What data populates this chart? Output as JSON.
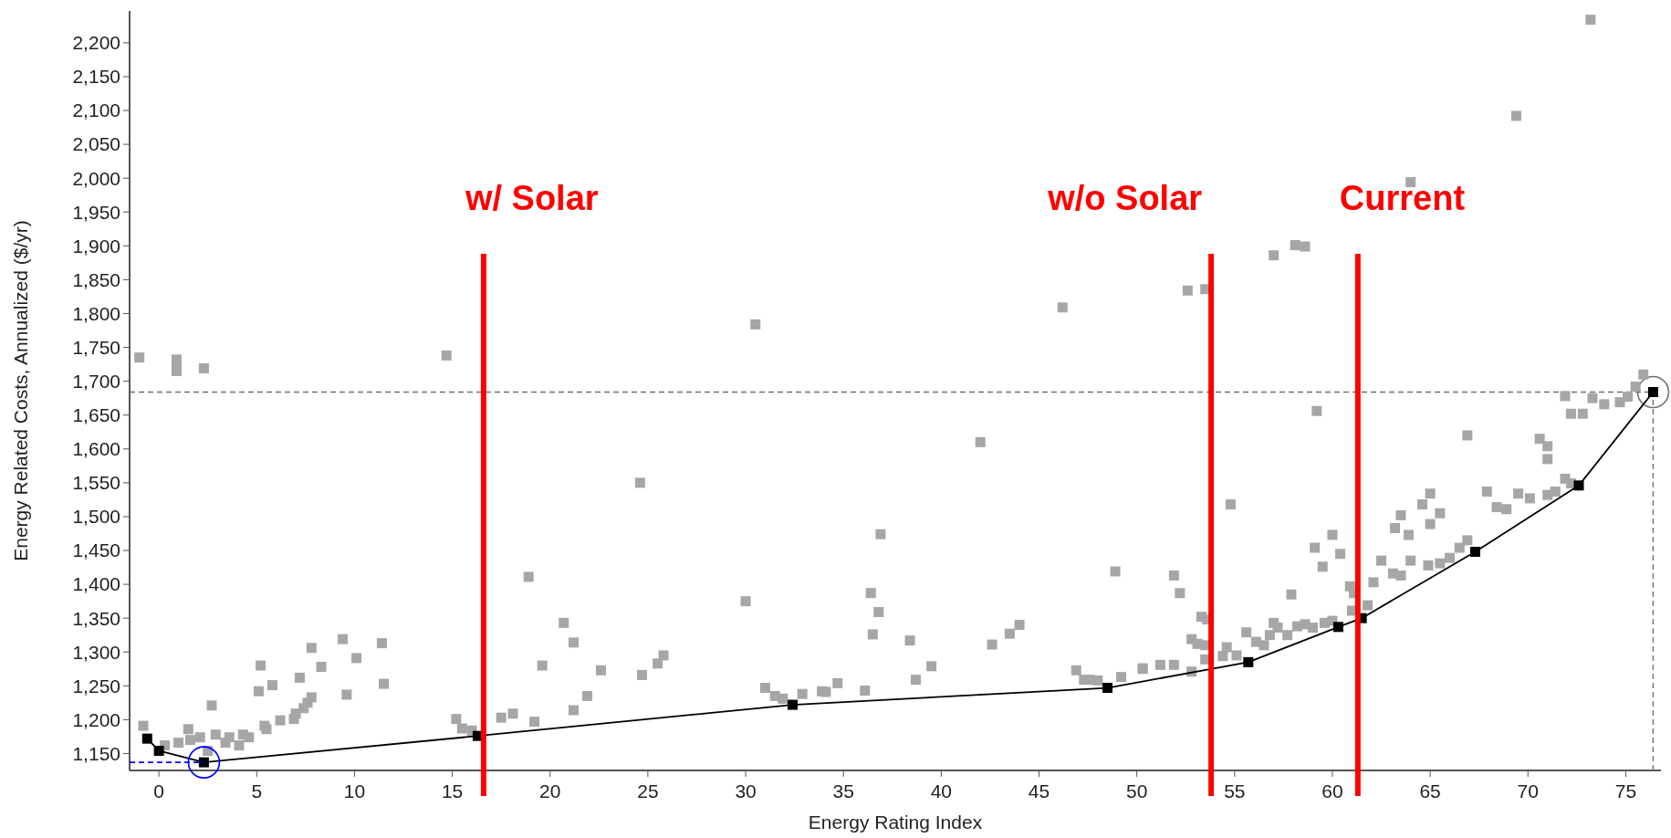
{
  "chart_data": {
    "type": "scatter",
    "xlabel": "Energy Rating Index",
    "ylabel": "Energy Related Costs, Annualized ($/yr)",
    "xlim": [
      -1.5,
      76.8
    ],
    "ylim": [
      1125,
      2247
    ],
    "xticks": [
      0,
      5,
      10,
      15,
      20,
      25,
      30,
      35,
      40,
      45,
      50,
      55,
      60,
      65,
      70,
      75
    ],
    "yticks": [
      {
        "value": 1150,
        "label": "1,150"
      },
      {
        "value": 1200,
        "label": "1,200"
      },
      {
        "value": 1250,
        "label": "1,250"
      },
      {
        "value": 1300,
        "label": "1,300"
      },
      {
        "value": 1350,
        "label": "1,350"
      },
      {
        "value": 1400,
        "label": "1,400"
      },
      {
        "value": 1450,
        "label": "1,450"
      },
      {
        "value": 1500,
        "label": "1,500"
      },
      {
        "value": 1550,
        "label": "1,550"
      },
      {
        "value": 1600,
        "label": "1,600"
      },
      {
        "value": 1650,
        "label": "1,650"
      },
      {
        "value": 1700,
        "label": "1,700"
      },
      {
        "value": 1750,
        "label": "1,750"
      },
      {
        "value": 1800,
        "label": "1,800"
      },
      {
        "value": 1850,
        "label": "1,850"
      },
      {
        "value": 1900,
        "label": "1,900"
      },
      {
        "value": 1950,
        "label": "1,950"
      },
      {
        "value": 2000,
        "label": "2,000"
      },
      {
        "value": 2050,
        "label": "2,050"
      },
      {
        "value": 2100,
        "label": "2,100"
      },
      {
        "value": 2150,
        "label": "2,150"
      },
      {
        "value": 2200,
        "label": "2,200"
      }
    ],
    "series": [
      {
        "color": "#a6a6a6",
        "marker": "square",
        "x": [
          -1.0,
          0.9,
          0.9,
          0.9,
          2.3,
          14.7,
          18.9,
          19.6,
          19.2,
          18.1,
          17.5,
          15.2,
          15.5,
          16.0,
          -0.8,
          0.3,
          1.0,
          1.5,
          1.6,
          2.1,
          2.7,
          2.9,
          3.4,
          3.6,
          4.1,
          4.3,
          4.6,
          2.5,
          5.2,
          5.1,
          5.8,
          5.4,
          5.5,
          6.2,
          6.9,
          7.0,
          7.2,
          7.4,
          7.6,
          7.8,
          7.8,
          8.3,
          9.4,
          10.1,
          9.6,
          11.4,
          11.5,
          20.7,
          21.2,
          21.2,
          21.9,
          22.6,
          24.6,
          24.7,
          25.5,
          25.8,
          30.0,
          30.5,
          31.0,
          31.5,
          31.9,
          32.9,
          33.9,
          34.1,
          34.7,
          36.1,
          36.4,
          36.5,
          36.8,
          36.9,
          38.4,
          38.7,
          39.5,
          42.0,
          42.6,
          43.5,
          44.0,
          46.2,
          46.9,
          47.3,
          47.6,
          48.0,
          48.9,
          49.2,
          50.3,
          52.6,
          53.5,
          59.2,
          54.8,
          51.9,
          52.2,
          53.3,
          53.6,
          52.8,
          53.1,
          53.5,
          53.5,
          52.8,
          50.3,
          51.2,
          51.9,
          54.4,
          54.6,
          55.1,
          55.6,
          56.1,
          56.5,
          56.8,
          57.0,
          57.2,
          57.9,
          57.7,
          58.2,
          58.6,
          59.0,
          59.6,
          60.0,
          59.1,
          59.5,
          60.0,
          60.4,
          60.9,
          61.1,
          61.0,
          61.8,
          62.1,
          62.5,
          63.1,
          63.5,
          63.2,
          63.5,
          63.9,
          64.0,
          64.6,
          65.0,
          64.9,
          65.0,
          65.5,
          65.5,
          66.0,
          66.5,
          66.9,
          66.9,
          67.9,
          68.4,
          68.9,
          69.5,
          70.1,
          70.6,
          71.0,
          71.0,
          71.0,
          71.4,
          71.9,
          72.2,
          71.9,
          72.2,
          72.8,
          73.3,
          73.9,
          74.7,
          75.1,
          75.5,
          75.9,
          73.2,
          69.4,
          64.0,
          57.0,
          58.1,
          58.6
        ],
        "values": [
          1735,
          1732,
          1722,
          1715,
          1719,
          1738,
          1411,
          1280,
          1197,
          1209,
          1203,
          1201,
          1187,
          1184,
          1191,
          1162,
          1166,
          1186,
          1170,
          1174,
          1221,
          1178,
          1166,
          1174,
          1162,
          1178,
          1174,
          1154,
          1280,
          1242,
          1251,
          1191,
          1186,
          1199,
          1201,
          1209,
          1262,
          1217,
          1225,
          1233,
          1306,
          1278,
          1319,
          1291,
          1237,
          1313,
          1253,
          1343,
          1314,
          1214,
          1235,
          1273,
          1550,
          1266,
          1283,
          1295,
          1375,
          1784,
          1247,
          1235,
          1231,
          1238,
          1242,
          1241,
          1254,
          1243,
          1387,
          1326,
          1359,
          1474,
          1317,
          1259,
          1279,
          1610,
          1311,
          1327,
          1340,
          1809,
          1273,
          1259,
          1259,
          1258,
          1419,
          1263,
          1275,
          1834,
          1836,
          1656,
          1518,
          1413,
          1387,
          1352,
          1348,
          1319,
          1312,
          1310,
          1289,
          1271,
          1276,
          1281,
          1281,
          1294,
          1307,
          1295,
          1329,
          1315,
          1310,
          1325,
          1343,
          1336,
          1385,
          1325,
          1338,
          1341,
          1336,
          1343,
          1346,
          1454,
          1426,
          1473,
          1445,
          1397,
          1387,
          1361,
          1369,
          1403,
          1435,
          1416,
          1413,
          1483,
          1502,
          1473,
          1435,
          1518,
          1534,
          1428,
          1489,
          1505,
          1431,
          1439,
          1454,
          1465,
          1620,
          1537,
          1514,
          1511,
          1534,
          1527,
          1615,
          1604,
          1585,
          1532,
          1537,
          1556,
          1549,
          1678,
          1652,
          1652,
          1675,
          1666,
          1669,
          1677,
          1692,
          1710,
          2234,
          2092,
          1994,
          1886,
          1901,
          1899
        ]
      },
      {
        "type": "line",
        "color": "#000000",
        "marker": "square",
        "x": [
          -0.6,
          0.0,
          2.3,
          16.3,
          32.4,
          48.5,
          55.7,
          60.3,
          61.5,
          67.3,
          72.6,
          76.4
        ],
        "values": [
          1172,
          1154,
          1137,
          1176,
          1222,
          1247,
          1285,
          1337,
          1350,
          1448,
          1546,
          1684
        ]
      },
      {
        "type": "line",
        "color": "#0000ff",
        "line_style": "dashed",
        "x": [
          -1.5,
          2.3
        ],
        "values": [
          1137,
          1137
        ]
      }
    ],
    "ref_lines": [
      {
        "axis": "x",
        "value": 16.6,
        "label": "w/ Solar",
        "color": "#ff0000"
      },
      {
        "axis": "x",
        "value": 53.8,
        "label": "w/o Solar",
        "color": "#ff0000"
      },
      {
        "axis": "x",
        "value": 61.3,
        "label": "Current",
        "color": "#ff0000"
      },
      {
        "axis": "y",
        "value": 1684,
        "color": "#707070",
        "line_style": "dashed"
      },
      {
        "axis": "x",
        "value": 76.4,
        "color": "#707070",
        "line_style": "dashed"
      }
    ]
  }
}
